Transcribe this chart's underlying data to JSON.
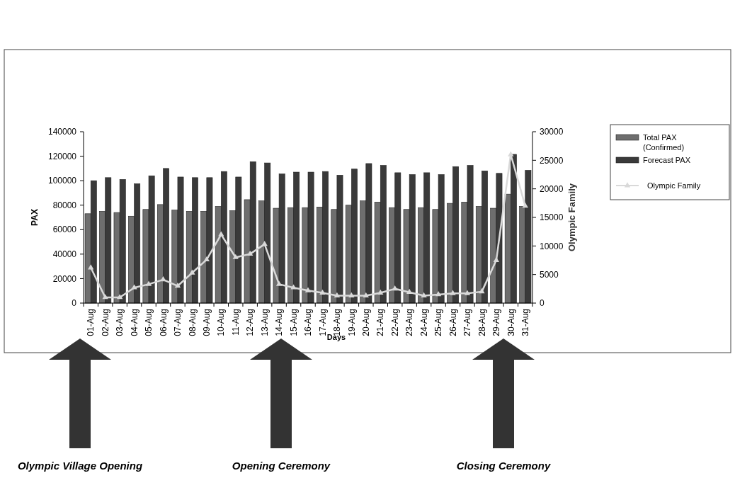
{
  "chart_data": {
    "type": "bar",
    "xlabel": "Days",
    "ylabel": "PAX",
    "y2label": "Olympic Family",
    "categories": [
      "01-Aug",
      "02-Aug",
      "03-Aug",
      "04-Aug",
      "05-Aug",
      "06-Aug",
      "07-Aug",
      "08-Aug",
      "09-Aug",
      "10-Aug",
      "11-Aug",
      "12-Aug",
      "13-Aug",
      "14-Aug",
      "15-Aug",
      "16-Aug",
      "17-Aug",
      "18-Aug",
      "19-Aug",
      "20-Aug",
      "21-Aug",
      "22-Aug",
      "23-Aug",
      "24-Aug",
      "25-Aug",
      "26-Aug",
      "27-Aug",
      "28-Aug",
      "29-Aug",
      "30-Aug",
      "31-Aug"
    ],
    "series": [
      {
        "name": "Total PAX (Confirmed)",
        "color": "#6e6e6e",
        "values": [
          73000,
          75000,
          74000,
          71000,
          76500,
          80500,
          76000,
          75000,
          75000,
          79000,
          75500,
          84500,
          83500,
          77500,
          78000,
          78000,
          78500,
          76500,
          80000,
          83500,
          82500,
          78000,
          76500,
          78000,
          76500,
          81500,
          82500,
          79000,
          77500,
          89000,
          79000
        ]
      },
      {
        "name": "Forecast PAX",
        "color": "#3a3a3a",
        "values": [
          100000,
          102500,
          101000,
          97500,
          104000,
          110000,
          103000,
          102500,
          102500,
          107500,
          103000,
          115500,
          114500,
          105500,
          107000,
          107000,
          107500,
          104500,
          109500,
          114000,
          112500,
          106500,
          105000,
          106500,
          105000,
          111500,
          112500,
          108000,
          106000,
          121500,
          108500
        ]
      },
      {
        "name": "Olympic Family",
        "type": "line",
        "axis": "y2",
        "color": "#d9d9d9",
        "values": [
          6200,
          1000,
          1000,
          2700,
          3300,
          4100,
          3000,
          5300,
          7600,
          12000,
          8000,
          8600,
          10300,
          3300,
          2700,
          2200,
          1800,
          1300,
          1300,
          1300,
          1800,
          2500,
          1900,
          1300,
          1500,
          1700,
          1700,
          2000,
          7500,
          26000,
          17000
        ]
      }
    ],
    "ylim": [
      0,
      140000
    ],
    "yticks": [
      0,
      20000,
      40000,
      60000,
      80000,
      100000,
      120000,
      140000
    ],
    "y2lim": [
      0,
      30000
    ],
    "y2ticks": [
      0,
      5000,
      10000,
      15000,
      20000,
      25000,
      30000
    ],
    "grid": false,
    "legend": "right",
    "marker": "triangle",
    "annotations": [
      "Olympic Village Opening",
      "Opening Ceremony",
      "Closing Ceremony"
    ]
  }
}
